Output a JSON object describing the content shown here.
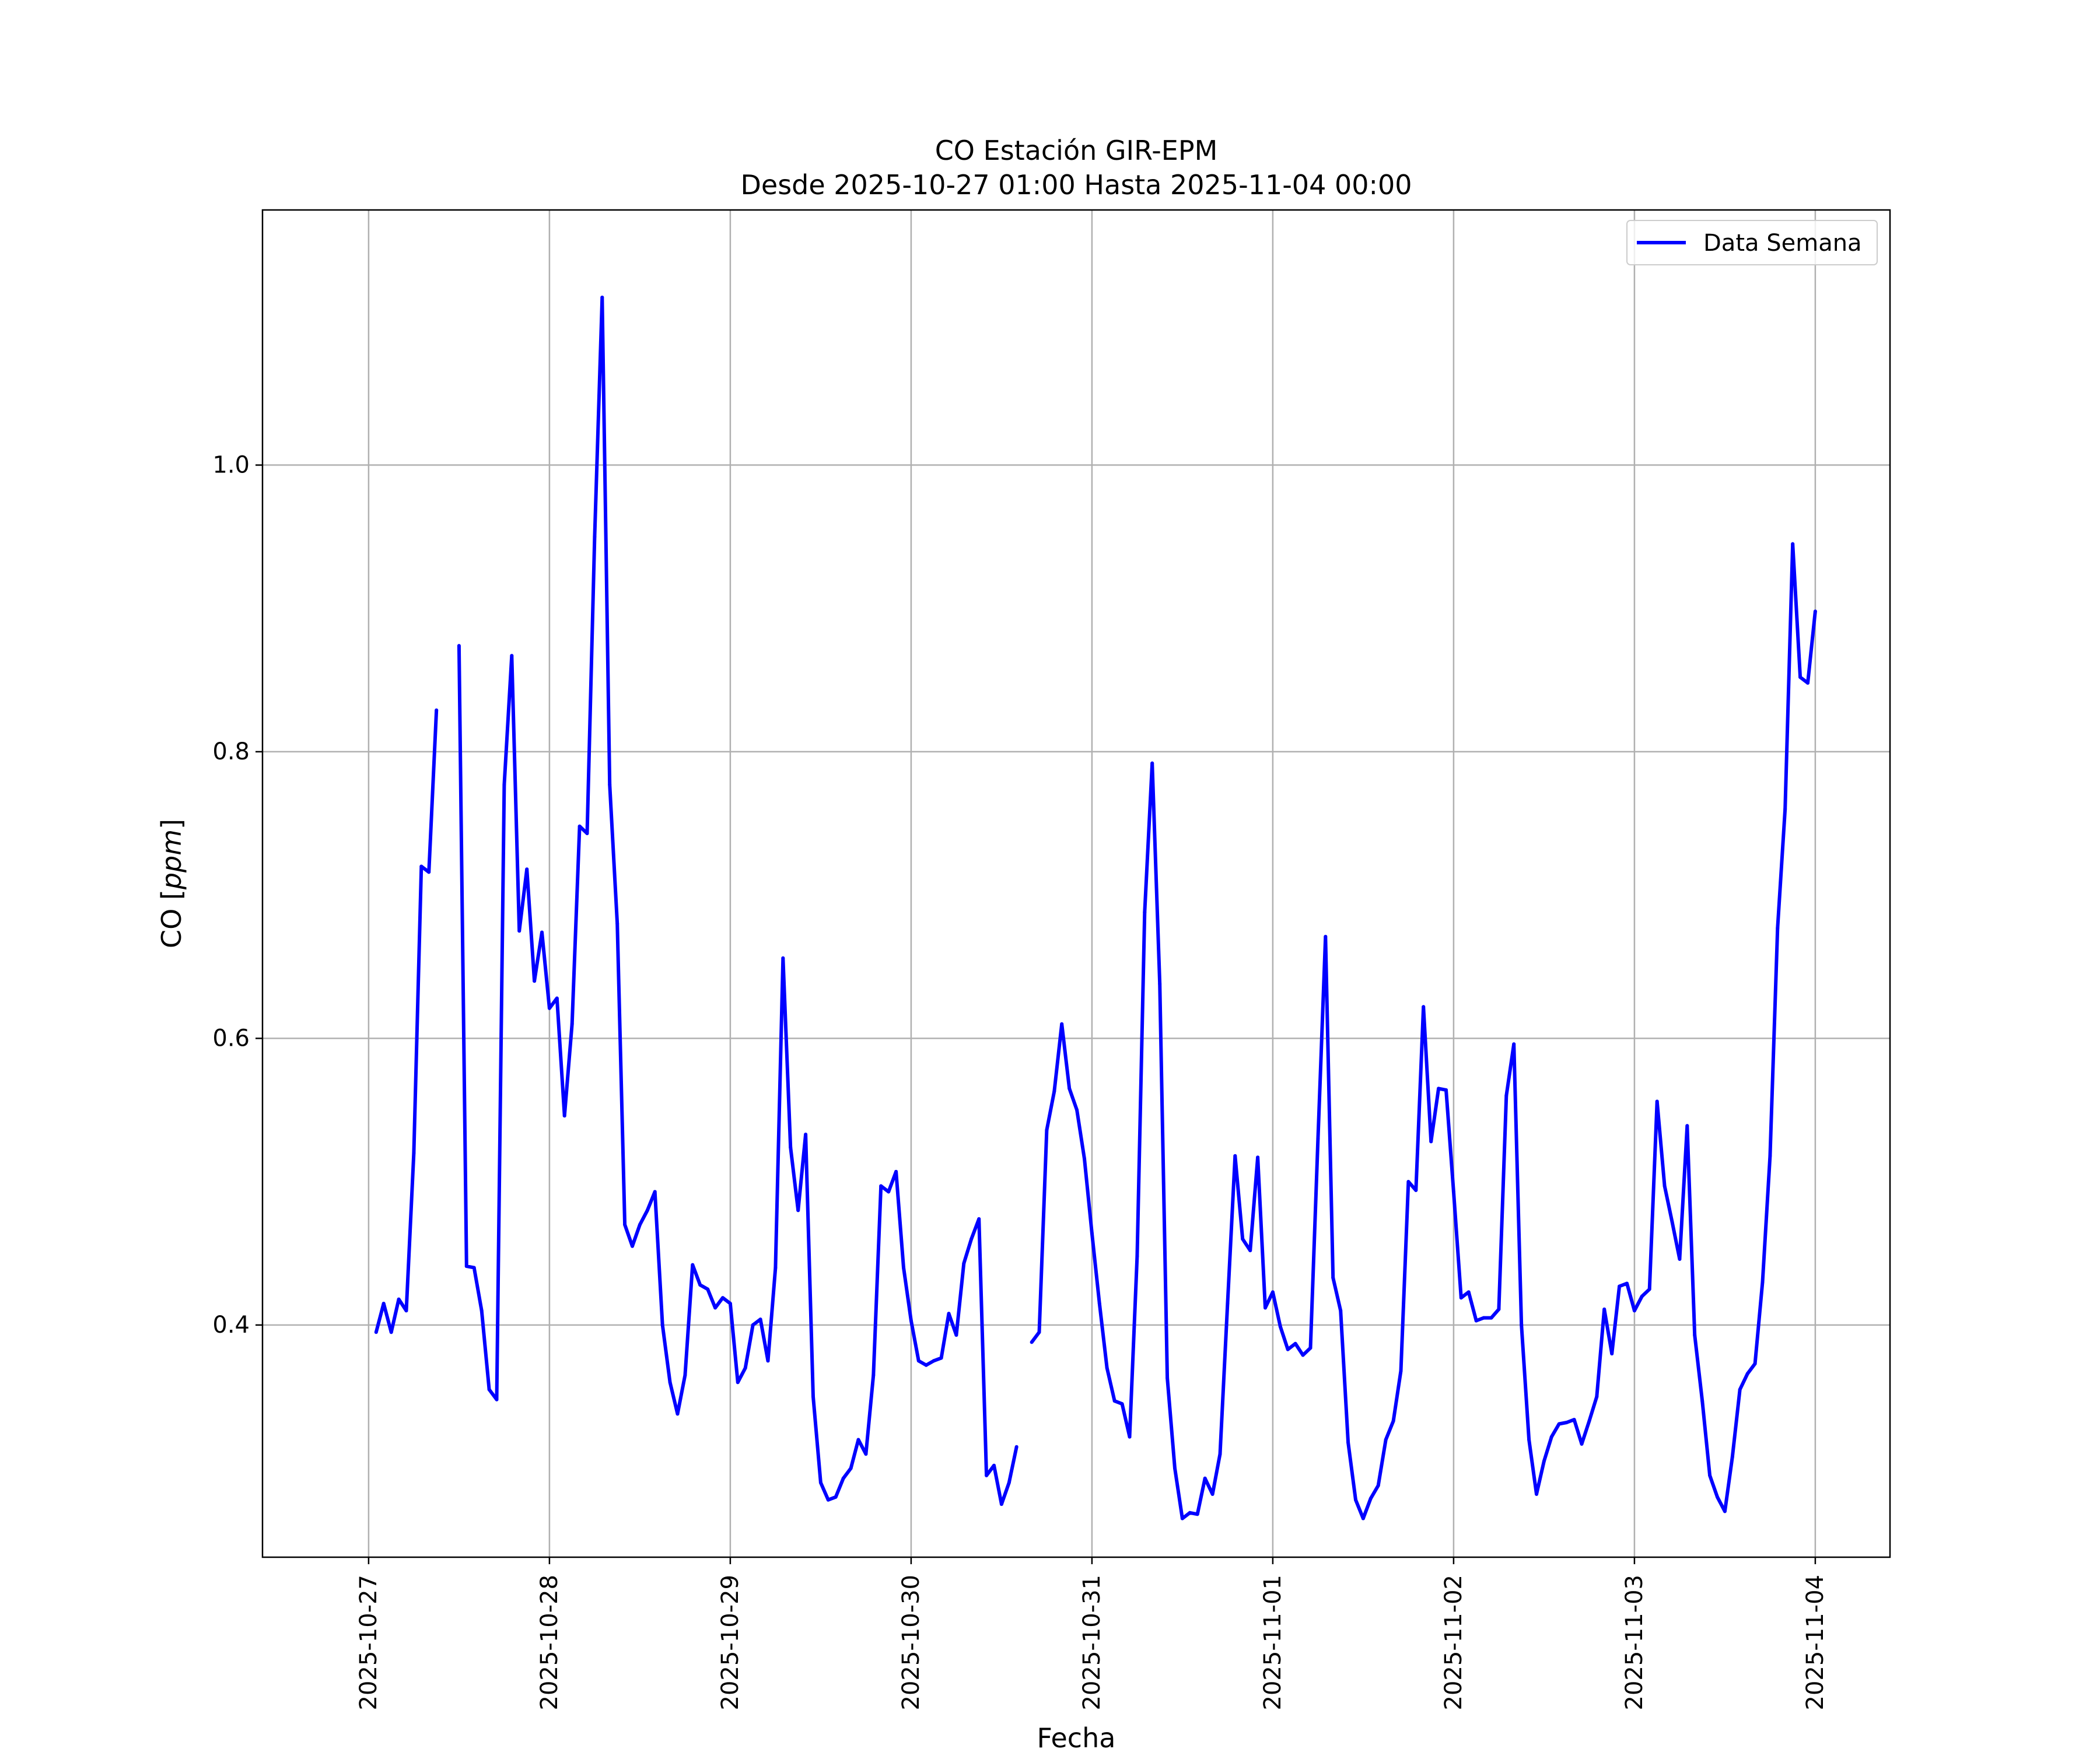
{
  "chart_data": {
    "type": "line",
    "title": "CO Estación GIR-EPM",
    "subtitle": "Desde 2025-10-27 01:00 Hasta 2025-11-04 00:00",
    "xlabel": "Fecha",
    "ylabel": "CO",
    "ylabel_unit": "ppm",
    "x_ticks": [
      "2025-10-27",
      "2025-10-28",
      "2025-10-29",
      "2025-10-30",
      "2025-10-31",
      "2025-11-01",
      "2025-11-02",
      "2025-11-03",
      "2025-11-04"
    ],
    "y_ticks": [
      "0.4",
      "0.6",
      "0.8",
      "1.0"
    ],
    "xlim": [
      "2025-10-26 09:55",
      "2025-11-04 09:55"
    ],
    "ylim": [
      0.238,
      1.178
    ],
    "grid": true,
    "legend_position": "top-right",
    "series": [
      {
        "name": "Data Semana",
        "color": "#0000ff",
        "x": [
          "2025-10-27 01:00",
          "2025-10-27 02:00",
          "2025-10-27 03:00",
          "2025-10-27 04:00",
          "2025-10-27 05:00",
          "2025-10-27 06:00",
          "2025-10-27 07:00",
          "2025-10-27 08:00",
          "2025-10-27 09:00",
          "2025-10-27 10:00",
          "2025-10-27 11:00",
          "2025-10-27 12:00",
          "2025-10-27 13:00",
          "2025-10-27 14:00",
          "2025-10-27 15:00",
          "2025-10-27 16:00",
          "2025-10-27 17:00",
          "2025-10-27 18:00",
          "2025-10-27 19:00",
          "2025-10-27 20:00",
          "2025-10-27 21:00",
          "2025-10-27 22:00",
          "2025-10-27 23:00",
          "2025-10-28 00:00",
          "2025-10-28 01:00",
          "2025-10-28 02:00",
          "2025-10-28 03:00",
          "2025-10-28 04:00",
          "2025-10-28 05:00",
          "2025-10-28 06:00",
          "2025-10-28 07:00",
          "2025-10-28 08:00",
          "2025-10-28 09:00",
          "2025-10-28 10:00",
          "2025-10-28 11:00",
          "2025-10-28 12:00",
          "2025-10-28 13:00",
          "2025-10-28 14:00",
          "2025-10-28 15:00",
          "2025-10-28 16:00",
          "2025-10-28 17:00",
          "2025-10-28 18:00",
          "2025-10-28 19:00",
          "2025-10-28 20:00",
          "2025-10-28 21:00",
          "2025-10-28 22:00",
          "2025-10-28 23:00",
          "2025-10-29 00:00",
          "2025-10-29 01:00",
          "2025-10-29 02:00",
          "2025-10-29 03:00",
          "2025-10-29 04:00",
          "2025-10-29 05:00",
          "2025-10-29 06:00",
          "2025-10-29 07:00",
          "2025-10-29 08:00",
          "2025-10-29 09:00",
          "2025-10-29 10:00",
          "2025-10-29 11:00",
          "2025-10-29 12:00",
          "2025-10-29 13:00",
          "2025-10-29 14:00",
          "2025-10-29 15:00",
          "2025-10-29 16:00",
          "2025-10-29 17:00",
          "2025-10-29 18:00",
          "2025-10-29 19:00",
          "2025-10-29 20:00",
          "2025-10-29 21:00",
          "2025-10-29 22:00",
          "2025-10-29 23:00",
          "2025-10-30 00:00",
          "2025-10-30 01:00",
          "2025-10-30 02:00",
          "2025-10-30 03:00",
          "2025-10-30 04:00",
          "2025-10-30 05:00",
          "2025-10-30 06:00",
          "2025-10-30 07:00",
          "2025-10-30 08:00",
          "2025-10-30 09:00",
          "2025-10-30 10:00",
          "2025-10-30 11:00",
          "2025-10-30 12:00",
          "2025-10-30 13:00",
          "2025-10-30 14:00",
          "2025-10-30 15:00",
          "2025-10-30 16:00",
          "2025-10-30 17:00",
          "2025-10-30 18:00",
          "2025-10-30 19:00",
          "2025-10-30 20:00",
          "2025-10-30 21:00",
          "2025-10-30 22:00",
          "2025-10-30 23:00",
          "2025-10-31 00:00",
          "2025-10-31 01:00",
          "2025-10-31 02:00",
          "2025-10-31 03:00",
          "2025-10-31 04:00",
          "2025-10-31 05:00",
          "2025-10-31 06:00",
          "2025-10-31 07:00",
          "2025-10-31 08:00",
          "2025-10-31 09:00",
          "2025-10-31 10:00",
          "2025-10-31 11:00",
          "2025-10-31 12:00",
          "2025-10-31 13:00",
          "2025-10-31 14:00",
          "2025-10-31 15:00",
          "2025-10-31 16:00",
          "2025-10-31 17:00",
          "2025-10-31 18:00",
          "2025-10-31 19:00",
          "2025-10-31 20:00",
          "2025-10-31 21:00",
          "2025-10-31 22:00",
          "2025-10-31 23:00",
          "2025-11-01 00:00",
          "2025-11-01 01:00",
          "2025-11-01 02:00",
          "2025-11-01 03:00",
          "2025-11-01 04:00",
          "2025-11-01 05:00",
          "2025-11-01 06:00",
          "2025-11-01 07:00",
          "2025-11-01 08:00",
          "2025-11-01 09:00",
          "2025-11-01 10:00",
          "2025-11-01 11:00",
          "2025-11-01 12:00",
          "2025-11-01 13:00",
          "2025-11-01 14:00",
          "2025-11-01 15:00",
          "2025-11-01 16:00",
          "2025-11-01 17:00",
          "2025-11-01 18:00",
          "2025-11-01 19:00",
          "2025-11-01 20:00",
          "2025-11-01 21:00",
          "2025-11-01 22:00",
          "2025-11-01 23:00",
          "2025-11-02 00:00",
          "2025-11-02 01:00",
          "2025-11-02 02:00",
          "2025-11-02 03:00",
          "2025-11-02 04:00",
          "2025-11-02 05:00",
          "2025-11-02 06:00",
          "2025-11-02 07:00",
          "2025-11-02 08:00",
          "2025-11-02 09:00",
          "2025-11-02 10:00",
          "2025-11-02 11:00",
          "2025-11-02 12:00",
          "2025-11-02 13:00",
          "2025-11-02 14:00",
          "2025-11-02 15:00",
          "2025-11-02 16:00",
          "2025-11-02 17:00",
          "2025-11-02 18:00",
          "2025-11-02 19:00",
          "2025-11-02 20:00",
          "2025-11-02 21:00",
          "2025-11-02 22:00",
          "2025-11-02 23:00",
          "2025-11-03 00:00",
          "2025-11-03 01:00",
          "2025-11-03 02:00",
          "2025-11-03 03:00",
          "2025-11-03 04:00",
          "2025-11-03 05:00",
          "2025-11-03 06:00",
          "2025-11-03 07:00",
          "2025-11-03 08:00",
          "2025-11-03 09:00",
          "2025-11-03 10:00",
          "2025-11-03 11:00",
          "2025-11-03 12:00",
          "2025-11-03 13:00",
          "2025-11-03 14:00",
          "2025-11-03 15:00",
          "2025-11-03 16:00",
          "2025-11-03 17:00",
          "2025-11-03 18:00",
          "2025-11-03 19:00",
          "2025-11-03 20:00",
          "2025-11-03 21:00",
          "2025-11-03 22:00",
          "2025-11-03 23:00",
          "2025-11-04 00:00"
        ],
        "values": [
          0.395,
          0.415,
          0.395,
          0.418,
          0.41,
          0.52,
          0.72,
          0.716,
          0.829,
          null,
          null,
          0.874,
          0.441,
          0.44,
          0.41,
          0.355,
          0.348,
          0.777,
          0.867,
          0.675,
          0.718,
          0.64,
          0.674,
          0.621,
          0.628,
          0.546,
          0.61,
          0.748,
          0.743,
          0.95,
          1.117,
          0.777,
          0.68,
          0.47,
          0.455,
          0.47,
          0.48,
          0.493,
          0.4,
          0.36,
          0.338,
          0.365,
          0.442,
          0.428,
          0.425,
          0.412,
          0.419,
          0.415,
          0.36,
          0.37,
          0.4,
          0.404,
          0.375,
          0.44,
          0.656,
          0.524,
          0.48,
          0.533,
          0.35,
          0.29,
          0.278,
          0.28,
          0.293,
          0.3,
          0.32,
          0.31,
          0.365,
          0.497,
          0.493,
          0.507,
          0.44,
          0.403,
          0.375,
          0.372,
          0.375,
          0.377,
          0.408,
          0.393,
          0.443,
          0.46,
          0.474,
          0.295,
          0.302,
          0.275,
          0.29,
          0.315,
          null,
          0.388,
          0.395,
          0.536,
          0.563,
          0.61,
          0.565,
          0.55,
          0.516,
          0.464,
          0.415,
          0.37,
          0.347,
          0.345,
          0.322,
          0.448,
          0.688,
          0.792,
          0.638,
          0.363,
          0.3,
          0.265,
          0.269,
          0.268,
          0.293,
          0.282,
          0.31,
          0.415,
          0.518,
          0.46,
          0.452,
          0.517,
          0.412,
          0.423,
          0.399,
          0.383,
          0.387,
          0.379,
          0.384,
          0.53,
          0.671,
          0.433,
          0.41,
          0.318,
          0.278,
          0.265,
          0.279,
          0.288,
          0.32,
          0.333,
          0.368,
          0.5,
          0.494,
          0.622,
          0.528,
          0.565,
          0.564,
          0.493,
          0.419,
          0.423,
          0.403,
          0.405,
          0.405,
          0.411,
          0.56,
          0.596,
          0.4,
          0.32,
          0.282,
          0.305,
          0.322,
          0.331,
          0.332,
          0.334,
          0.317,
          0.333,
          0.35,
          0.411,
          0.38,
          0.427,
          0.429,
          0.41,
          0.42,
          0.425,
          0.556,
          0.497,
          0.472,
          0.446,
          0.539,
          0.393,
          0.347,
          0.295,
          0.28,
          0.27,
          0.308,
          0.355,
          0.366,
          0.373,
          0.43,
          0.518,
          0.677,
          0.76,
          0.945,
          0.852,
          0.848,
          0.898
        ]
      }
    ]
  }
}
